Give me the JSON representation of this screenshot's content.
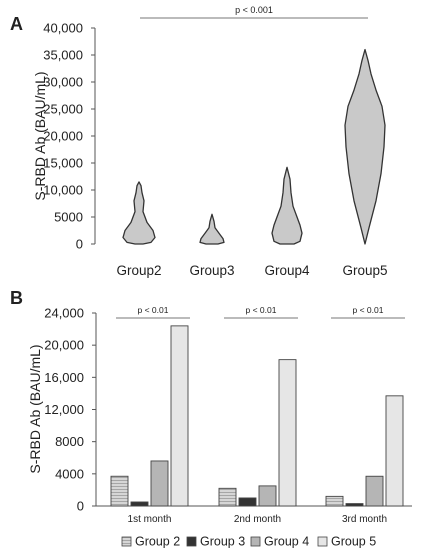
{
  "panel_a": {
    "label": "A",
    "significance": "p < 0.001",
    "chart_data": {
      "type": "violin",
      "ylabel": "S-RBD Ab (BAU/mL)",
      "xlabel": "",
      "ylim": [
        0,
        40000
      ],
      "yticks": [
        0,
        5000,
        10000,
        15000,
        20000,
        25000,
        30000,
        35000,
        40000
      ],
      "ytick_labels": [
        "0",
        "5000",
        "10,000",
        "15,000",
        "20,000",
        "25,000",
        "30,000",
        "35,000",
        "40,000"
      ],
      "categories": [
        "Group2",
        "Group3",
        "Group4",
        "Group5"
      ],
      "ranges": [
        [
          0,
          11500
        ],
        [
          0,
          5500
        ],
        [
          0,
          14200
        ],
        [
          0,
          36000
        ]
      ],
      "fill_color": "#c9c9c9",
      "stroke_color": "#333333"
    }
  },
  "panel_b": {
    "label": "B",
    "chart_data": {
      "type": "bar",
      "ylabel": "S-RBD Ab (BAU/mL)",
      "xlabel": "",
      "ylim": [
        0,
        24000
      ],
      "yticks": [
        0,
        4000,
        8000,
        12000,
        16000,
        20000,
        24000
      ],
      "ytick_labels": [
        "0",
        "4000",
        "8000",
        "12,000",
        "16,000",
        "20,000",
        "24,000"
      ],
      "categories": [
        "1st month",
        "2nd month",
        "3rd month"
      ],
      "significance": [
        "p < 0.01",
        "p < 0.01",
        "p < 0.01"
      ],
      "legend_position": "bottom",
      "series": [
        {
          "name": "Group 2",
          "values": [
            3700,
            2200,
            1200
          ],
          "color": "#cfcfcf",
          "pattern": "lines"
        },
        {
          "name": "Group 3",
          "values": [
            500,
            1000,
            300
          ],
          "color": "#333333"
        },
        {
          "name": "Group 4",
          "values": [
            5600,
            2500,
            3700
          ],
          "color": "#b5b5b5"
        },
        {
          "name": "Group 5",
          "values": [
            22400,
            18200,
            13700
          ],
          "color": "#e6e6e6"
        }
      ]
    }
  }
}
